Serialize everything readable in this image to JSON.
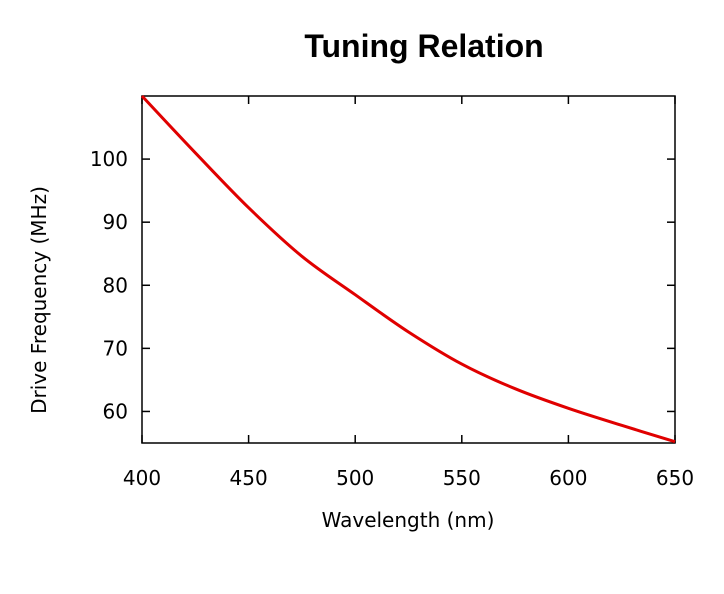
{
  "chart_data": {
    "type": "line",
    "title": "Tuning Relation",
    "xlabel": "Wavelength (nm)",
    "ylabel": "Drive Frequency (MHz)",
    "xlim": [
      400,
      650
    ],
    "ylim": [
      55,
      110
    ],
    "xticks": [
      400,
      450,
      500,
      550,
      600,
      650
    ],
    "yticks": [
      60,
      70,
      80,
      90,
      100
    ],
    "grid": false,
    "legend": "none",
    "series": [
      {
        "name": "Drive Frequency",
        "color": "#e00000",
        "x": [
          400,
          425,
          450,
          475,
          500,
          525,
          550,
          575,
          600,
          625,
          650
        ],
        "y": [
          110,
          101,
          92.3,
          84.6,
          78.5,
          72.6,
          67.5,
          63.6,
          60.5,
          57.8,
          55.2
        ]
      }
    ]
  }
}
